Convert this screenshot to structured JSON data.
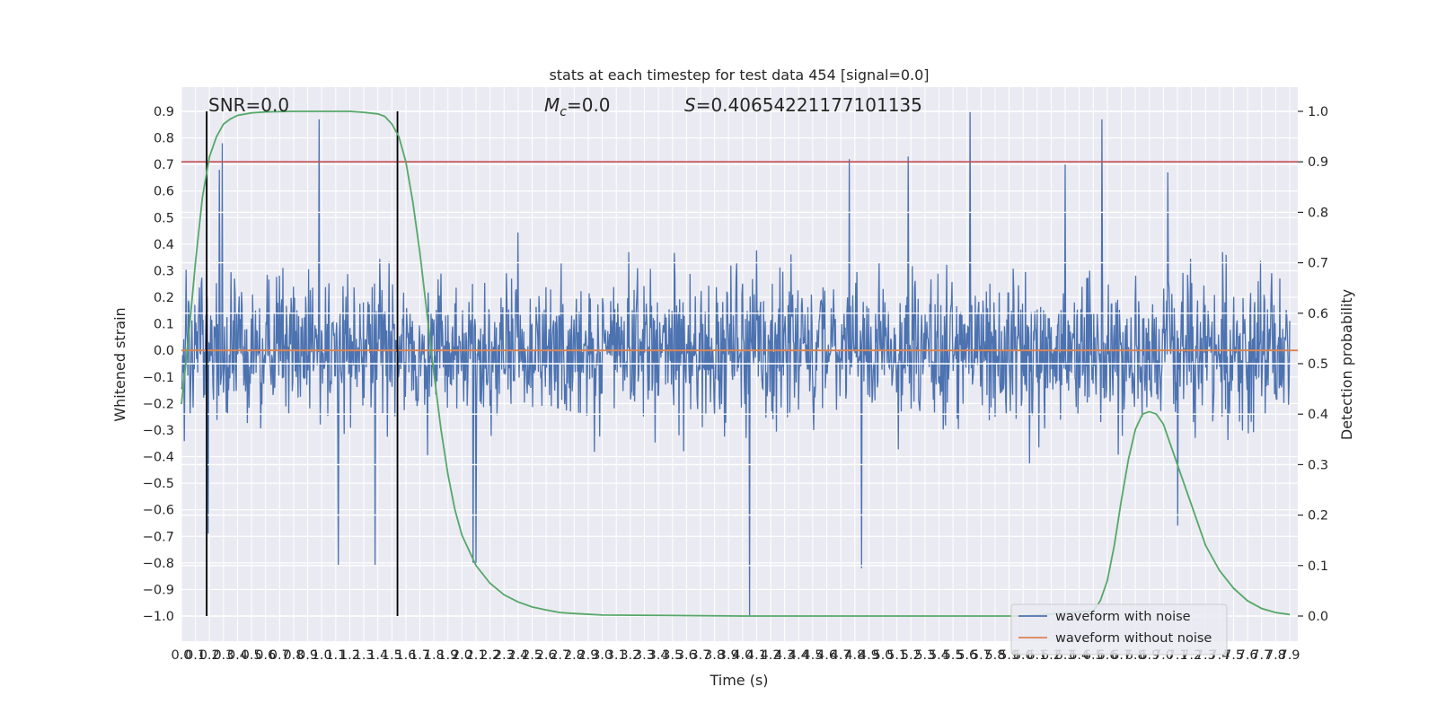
{
  "chart_data": {
    "type": "line",
    "title": "stats at each timestep for test data 454 [signal=0.0]",
    "xlabel": "Time (s)",
    "ylabel": "Whitened strain",
    "y2label": "Detection probability",
    "xlim": [
      0.0,
      7.9
    ],
    "ylim": [
      -1.0,
      0.9
    ],
    "y2lim": [
      0.0,
      1.0
    ],
    "grid": true,
    "x_ticks": [
      "0.0",
      "0.1",
      "0.2",
      "0.3",
      "0.4",
      "0.5",
      "0.6",
      "0.7",
      "0.8",
      "0.9",
      "1.0",
      "1.1",
      "1.2",
      "1.3",
      "1.4",
      "1.5",
      "1.6",
      "1.7",
      "1.8",
      "1.9",
      "2.0",
      "2.1",
      "2.2",
      "2.3",
      "2.4",
      "2.5",
      "2.6",
      "2.7",
      "2.8",
      "2.9",
      "3.0",
      "3.1",
      "3.2",
      "3.3",
      "3.4",
      "3.5",
      "3.6",
      "3.7",
      "3.8",
      "3.9",
      "4.0",
      "4.1",
      "4.2",
      "4.3",
      "4.4",
      "4.5",
      "4.6",
      "4.7",
      "4.8",
      "4.9",
      "5.0",
      "5.1",
      "5.2",
      "5.3",
      "5.4",
      "5.5",
      "5.6",
      "5.7",
      "5.8",
      "5.9",
      "6.0",
      "6.1",
      "6.2",
      "6.3",
      "6.4",
      "6.5",
      "6.6",
      "6.7",
      "6.8",
      "6.9",
      "7.0",
      "7.1",
      "7.2",
      "7.3",
      "7.4",
      "7.5",
      "7.6",
      "7.7",
      "7.8",
      "7.9"
    ],
    "y_ticks": [
      "0.9",
      "0.8",
      "0.7",
      "0.6",
      "0.5",
      "0.4",
      "0.3",
      "0.2",
      "0.1",
      "0.0",
      "−0.1",
      "−0.2",
      "−0.3",
      "−0.4",
      "−0.5",
      "−0.6",
      "−0.7",
      "−0.8",
      "−0.9",
      "−1.0"
    ],
    "y2_ticks": [
      "1.0",
      "0.9",
      "0.8",
      "0.7",
      "0.6",
      "0.5",
      "0.4",
      "0.3",
      "0.2",
      "0.1",
      "0.0"
    ],
    "annotations": {
      "snr": "SNR=0.0",
      "mc_symbol": "M",
      "mc_sub": "c",
      "mc_value": "=0.0",
      "s_symbol": "S",
      "s_value": "=0.40654221177101135"
    },
    "threshold_probability": 0.9,
    "vertical_markers_s": [
      0.18,
      1.54
    ],
    "series": [
      {
        "name": "waveform with noise",
        "color": "#4c72b0",
        "noise_envelope": {
          "typical_amplitude": 0.35,
          "peak_max": 0.9,
          "peak_min": -1.0
        },
        "spikes": [
          {
            "x": 0.27,
            "y": 0.68
          },
          {
            "x": 0.29,
            "y": 0.78
          },
          {
            "x": 0.19,
            "y": -0.69
          },
          {
            "x": 0.98,
            "y": 0.87
          },
          {
            "x": 1.12,
            "y": -0.81
          },
          {
            "x": 1.38,
            "y": -0.81
          },
          {
            "x": 2.08,
            "y": -0.8
          },
          {
            "x": 2.1,
            "y": -0.8
          },
          {
            "x": 4.05,
            "y": -1.0
          },
          {
            "x": 4.85,
            "y": -0.82
          },
          {
            "x": 4.76,
            "y": 0.72
          },
          {
            "x": 5.18,
            "y": 0.73
          },
          {
            "x": 5.62,
            "y": 0.9
          },
          {
            "x": 6.56,
            "y": 0.87
          },
          {
            "x": 6.3,
            "y": 0.7
          },
          {
            "x": 7.03,
            "y": 0.67
          },
          {
            "x": 7.1,
            "y": -0.66
          }
        ]
      },
      {
        "name": "waveform without noise",
        "color": "#dd8452",
        "value": 0.0
      },
      {
        "name": "Detection probability",
        "color": "#55a868",
        "axis": "right",
        "x": [
          0.0,
          0.05,
          0.1,
          0.15,
          0.2,
          0.25,
          0.3,
          0.35,
          0.4,
          0.5,
          0.6,
          0.8,
          1.0,
          1.2,
          1.3,
          1.4,
          1.45,
          1.5,
          1.55,
          1.6,
          1.65,
          1.7,
          1.75,
          1.8,
          1.85,
          1.9,
          1.95,
          2.0,
          2.1,
          2.2,
          2.3,
          2.4,
          2.5,
          2.6,
          2.7,
          2.8,
          3.0,
          3.5,
          4.0,
          5.0,
          6.0,
          6.5,
          6.55,
          6.6,
          6.65,
          6.7,
          6.75,
          6.8,
          6.85,
          6.9,
          6.95,
          7.0,
          7.05,
          7.1,
          7.15,
          7.2,
          7.25,
          7.3,
          7.4,
          7.5,
          7.6,
          7.7,
          7.8,
          7.9
        ],
        "y": [
          0.42,
          0.55,
          0.7,
          0.83,
          0.91,
          0.95,
          0.975,
          0.985,
          0.992,
          0.997,
          0.999,
          1.0,
          1.0,
          1.0,
          0.998,
          0.995,
          0.99,
          0.975,
          0.95,
          0.9,
          0.82,
          0.72,
          0.6,
          0.48,
          0.37,
          0.28,
          0.21,
          0.16,
          0.1,
          0.065,
          0.042,
          0.028,
          0.018,
          0.012,
          0.007,
          0.005,
          0.002,
          0.001,
          0.0,
          0.0,
          0.0,
          0.01,
          0.03,
          0.07,
          0.14,
          0.23,
          0.31,
          0.37,
          0.4,
          0.405,
          0.4,
          0.38,
          0.34,
          0.3,
          0.26,
          0.22,
          0.18,
          0.14,
          0.09,
          0.055,
          0.03,
          0.015,
          0.007,
          0.003
        ]
      }
    ],
    "legend": {
      "placement": "lower-right",
      "entries": [
        "waveform with noise",
        "waveform without noise"
      ]
    }
  }
}
